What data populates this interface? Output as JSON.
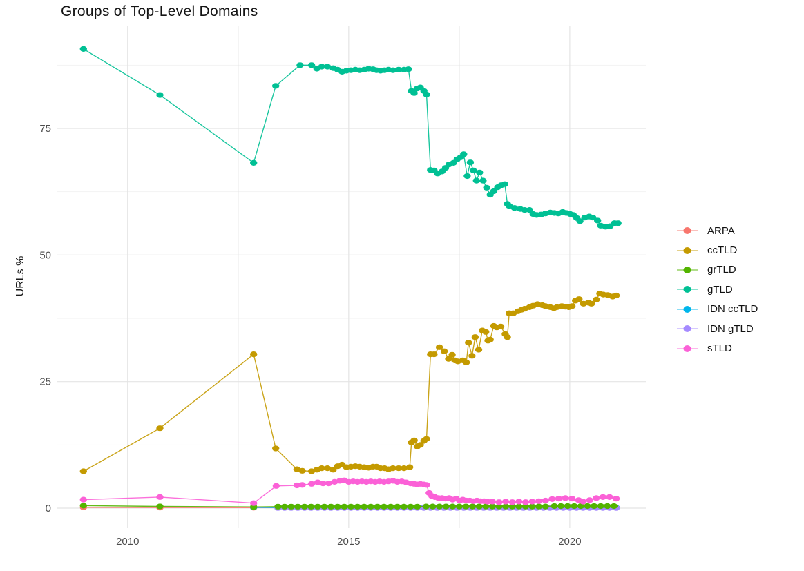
{
  "title": "Groups of Top-Level Domains",
  "axes": {
    "y_label": "URLs %",
    "x_tick_labels": [
      "2010",
      "2015",
      "2020"
    ],
    "y_tick_labels": [
      "0",
      "25",
      "50",
      "75"
    ]
  },
  "chart_data": {
    "type": "line",
    "title": "Groups of Top-Level Domains",
    "xlabel": "",
    "ylabel": "URLs %",
    "xlim": [
      2008.41,
      2021.72
    ],
    "ylim": [
      -3.95,
      95.32
    ],
    "x_ticks": [
      2010,
      2015,
      2020
    ],
    "y_ticks": [
      0,
      25,
      50,
      75
    ],
    "x_gridlines": [
      2010,
      2012.5,
      2015,
      2017.5,
      2020
    ],
    "y_minor_gridlines": [
      12.5,
      37.5,
      62.5,
      87.5
    ],
    "grid": true,
    "background": "#ffffff",
    "major_grid_color": "#e4e4e4",
    "minor_grid_color": "#f2f2f2",
    "tick_label_color": "#4d4d4d",
    "legend_position": "right",
    "legend": [
      {
        "label": "ARPA",
        "color": "#F8766D"
      },
      {
        "label": "ccTLD",
        "color": "#C49A00"
      },
      {
        "label": "grTLD",
        "color": "#53B400"
      },
      {
        "label": "gTLD",
        "color": "#00C094"
      },
      {
        "label": "IDN ccTLD",
        "color": "#00B6EB"
      },
      {
        "label": "IDN gTLD",
        "color": "#A58AFF"
      },
      {
        "label": "sTLD",
        "color": "#FB61D7"
      }
    ],
    "series": [
      {
        "name": "ARPA",
        "color": "#F8766D",
        "points": [
          [
            2009.0,
            0.15
          ],
          [
            2010.73,
            0.12
          ],
          [
            2012.85,
            0.1
          ]
        ],
        "segments": [
          {
            "from": 2013.4,
            "to": 2021.05,
            "step": 0.15,
            "value": 0.1
          }
        ]
      },
      {
        "name": "IDN ccTLD",
        "color": "#00B6EB",
        "points": [
          [
            2012.85,
            0.15
          ]
        ],
        "segments": [
          {
            "from": 2013.4,
            "to": 2021.05,
            "step": 0.15,
            "value": 0.12
          }
        ]
      },
      {
        "name": "IDN gTLD",
        "color": "#A58AFF",
        "points": [],
        "segments": [
          {
            "from": 2013.4,
            "to": 2021.05,
            "step": 0.15,
            "value": 0.05
          }
        ]
      },
      {
        "name": "grTLD",
        "color": "#53B400",
        "points": [
          [
            2009.0,
            0.5
          ],
          [
            2010.73,
            0.35
          ],
          [
            2012.85,
            0.25
          ]
        ],
        "segments": [
          {
            "from": 2013.4,
            "to": 2016.6,
            "step": 0.15,
            "value": 0.3
          },
          {
            "from": 2016.75,
            "to": 2019.5,
            "step": 0.15,
            "value": 0.33
          },
          {
            "from": 2019.65,
            "to": 2021.05,
            "step": 0.15,
            "value": 0.42
          }
        ]
      },
      {
        "name": "ccTLD",
        "color": "#C49A00",
        "points": [
          [
            2009.0,
            7.3
          ],
          [
            2010.73,
            15.8
          ],
          [
            2012.85,
            30.4
          ],
          [
            2013.35,
            11.8
          ],
          [
            2013.83,
            7.7
          ],
          [
            2013.95,
            7.4
          ],
          [
            2014.16,
            7.3
          ],
          [
            2014.28,
            7.6
          ],
          [
            2014.39,
            7.9
          ],
          [
            2014.52,
            7.9
          ],
          [
            2014.65,
            7.6
          ],
          [
            2014.75,
            8.3
          ],
          [
            2014.85,
            8.6
          ],
          [
            2014.95,
            8.1
          ],
          [
            2015.05,
            8.2
          ],
          [
            2015.15,
            8.3
          ],
          [
            2015.25,
            8.2
          ],
          [
            2015.35,
            8.1
          ],
          [
            2015.45,
            8.0
          ],
          [
            2015.55,
            8.2
          ],
          [
            2015.63,
            8.2
          ],
          [
            2015.72,
            7.9
          ],
          [
            2015.81,
            7.9
          ],
          [
            2015.9,
            7.7
          ],
          [
            2016.0,
            7.9
          ],
          [
            2016.13,
            7.9
          ],
          [
            2016.25,
            7.9
          ],
          [
            2016.38,
            8.1
          ],
          [
            2016.42,
            13.0
          ],
          [
            2016.48,
            13.4
          ],
          [
            2016.55,
            12.2
          ],
          [
            2016.62,
            12.5
          ],
          [
            2016.7,
            13.3
          ],
          [
            2016.76,
            13.7
          ],
          [
            2016.85,
            30.4
          ],
          [
            2016.93,
            30.4
          ],
          [
            2017.05,
            31.8
          ],
          [
            2017.16,
            31.0
          ],
          [
            2017.26,
            29.5
          ],
          [
            2017.34,
            30.3
          ],
          [
            2017.4,
            29.2
          ],
          [
            2017.47,
            29.0
          ],
          [
            2017.58,
            29.2
          ],
          [
            2017.66,
            28.8
          ],
          [
            2017.71,
            32.7
          ],
          [
            2017.79,
            30.1
          ],
          [
            2017.86,
            33.8
          ],
          [
            2017.94,
            31.3
          ],
          [
            2018.02,
            35.1
          ],
          [
            2018.1,
            34.8
          ],
          [
            2018.15,
            33.1
          ],
          [
            2018.2,
            33.3
          ],
          [
            2018.28,
            36.0
          ],
          [
            2018.35,
            35.7
          ],
          [
            2018.44,
            35.9
          ],
          [
            2018.54,
            34.4
          ],
          [
            2018.59,
            33.8
          ],
          [
            2018.63,
            38.5
          ],
          [
            2018.72,
            38.5
          ],
          [
            2018.83,
            38.9
          ],
          [
            2018.91,
            39.2
          ],
          [
            2018.98,
            39.4
          ],
          [
            2019.09,
            39.7
          ],
          [
            2019.17,
            40.0
          ],
          [
            2019.27,
            40.3
          ],
          [
            2019.38,
            40.1
          ],
          [
            2019.45,
            39.9
          ],
          [
            2019.56,
            39.7
          ],
          [
            2019.64,
            39.5
          ],
          [
            2019.71,
            39.7
          ],
          [
            2019.82,
            39.9
          ],
          [
            2019.9,
            39.8
          ],
          [
            2019.98,
            39.7
          ],
          [
            2020.05,
            39.9
          ],
          [
            2020.13,
            41.0
          ],
          [
            2020.21,
            41.3
          ],
          [
            2020.31,
            40.4
          ],
          [
            2020.42,
            40.6
          ],
          [
            2020.49,
            40.4
          ],
          [
            2020.6,
            41.2
          ],
          [
            2020.68,
            42.4
          ],
          [
            2020.76,
            42.2
          ],
          [
            2020.86,
            42.1
          ],
          [
            2020.97,
            41.8
          ],
          [
            2021.05,
            42.0
          ]
        ],
        "segments": []
      },
      {
        "name": "gTLD",
        "color": "#00C094",
        "points": [
          [
            2009.0,
            90.7
          ],
          [
            2010.73,
            81.6
          ],
          [
            2012.85,
            68.2
          ],
          [
            2013.35,
            83.4
          ],
          [
            2013.9,
            87.5
          ],
          [
            2014.16,
            87.5
          ],
          [
            2014.28,
            86.8
          ],
          [
            2014.39,
            87.2
          ],
          [
            2014.52,
            87.2
          ],
          [
            2014.65,
            86.9
          ],
          [
            2014.75,
            86.6
          ],
          [
            2014.85,
            86.2
          ],
          [
            2014.95,
            86.4
          ],
          [
            2015.05,
            86.5
          ],
          [
            2015.15,
            86.6
          ],
          [
            2015.25,
            86.5
          ],
          [
            2015.35,
            86.6
          ],
          [
            2015.45,
            86.8
          ],
          [
            2015.55,
            86.7
          ],
          [
            2015.63,
            86.5
          ],
          [
            2015.72,
            86.4
          ],
          [
            2015.81,
            86.5
          ],
          [
            2015.9,
            86.6
          ],
          [
            2016.0,
            86.5
          ],
          [
            2016.13,
            86.6
          ],
          [
            2016.25,
            86.6
          ],
          [
            2016.35,
            86.7
          ],
          [
            2016.42,
            82.4
          ],
          [
            2016.48,
            82.0
          ],
          [
            2016.55,
            82.9
          ],
          [
            2016.62,
            83.1
          ],
          [
            2016.7,
            82.4
          ],
          [
            2016.76,
            81.7
          ],
          [
            2016.85,
            66.8
          ],
          [
            2016.93,
            66.7
          ],
          [
            2017.01,
            66.1
          ],
          [
            2017.11,
            66.5
          ],
          [
            2017.19,
            67.2
          ],
          [
            2017.27,
            67.9
          ],
          [
            2017.37,
            68.2
          ],
          [
            2017.45,
            68.9
          ],
          [
            2017.53,
            69.3
          ],
          [
            2017.6,
            69.9
          ],
          [
            2017.68,
            65.6
          ],
          [
            2017.75,
            68.3
          ],
          [
            2017.82,
            66.7
          ],
          [
            2017.89,
            64.7
          ],
          [
            2017.96,
            66.3
          ],
          [
            2018.04,
            64.7
          ],
          [
            2018.12,
            63.3
          ],
          [
            2018.2,
            61.9
          ],
          [
            2018.28,
            62.6
          ],
          [
            2018.37,
            63.4
          ],
          [
            2018.45,
            63.8
          ],
          [
            2018.53,
            64.0
          ],
          [
            2018.59,
            60.1
          ],
          [
            2018.63,
            59.7
          ],
          [
            2018.75,
            59.3
          ],
          [
            2018.88,
            59.1
          ],
          [
            2018.98,
            58.9
          ],
          [
            2019.09,
            58.9
          ],
          [
            2019.17,
            58.1
          ],
          [
            2019.25,
            57.9
          ],
          [
            2019.35,
            58.0
          ],
          [
            2019.45,
            58.2
          ],
          [
            2019.56,
            58.4
          ],
          [
            2019.65,
            58.3
          ],
          [
            2019.74,
            58.2
          ],
          [
            2019.84,
            58.5
          ],
          [
            2019.92,
            58.3
          ],
          [
            2020.01,
            58.1
          ],
          [
            2020.08,
            57.9
          ],
          [
            2020.16,
            57.3
          ],
          [
            2020.23,
            56.7
          ],
          [
            2020.34,
            57.4
          ],
          [
            2020.44,
            57.6
          ],
          [
            2020.52,
            57.4
          ],
          [
            2020.63,
            56.8
          ],
          [
            2020.7,
            55.8
          ],
          [
            2020.81,
            55.6
          ],
          [
            2020.91,
            55.7
          ],
          [
            2021.01,
            56.3
          ],
          [
            2021.09,
            56.3
          ]
        ],
        "segments": []
      },
      {
        "name": "sTLD",
        "color": "#FB61D7",
        "points": [
          [
            2009.0,
            1.7
          ],
          [
            2010.73,
            2.2
          ],
          [
            2012.85,
            1.0
          ],
          [
            2013.36,
            4.4
          ],
          [
            2013.83,
            4.5
          ],
          [
            2013.95,
            4.6
          ],
          [
            2014.16,
            4.8
          ],
          [
            2014.3,
            5.1
          ],
          [
            2014.42,
            4.9
          ],
          [
            2014.55,
            4.9
          ],
          [
            2014.68,
            5.2
          ],
          [
            2014.8,
            5.4
          ],
          [
            2014.9,
            5.5
          ],
          [
            2015.0,
            5.2
          ],
          [
            2015.1,
            5.3
          ],
          [
            2015.2,
            5.2
          ],
          [
            2015.3,
            5.3
          ],
          [
            2015.4,
            5.2
          ],
          [
            2015.5,
            5.3
          ],
          [
            2015.6,
            5.2
          ],
          [
            2015.7,
            5.3
          ],
          [
            2015.8,
            5.2
          ],
          [
            2015.9,
            5.3
          ],
          [
            2016.0,
            5.4
          ],
          [
            2016.1,
            5.2
          ],
          [
            2016.2,
            5.3
          ],
          [
            2016.3,
            5.1
          ],
          [
            2016.4,
            4.9
          ],
          [
            2016.48,
            4.8
          ],
          [
            2016.55,
            4.7
          ],
          [
            2016.62,
            4.8
          ],
          [
            2016.7,
            4.7
          ],
          [
            2016.76,
            4.6
          ],
          [
            2016.82,
            3.0
          ],
          [
            2016.88,
            2.4
          ],
          [
            2016.95,
            2.2
          ],
          [
            2017.03,
            2.0
          ],
          [
            2017.11,
            2.0
          ],
          [
            2017.19,
            1.9
          ],
          [
            2017.27,
            2.0
          ],
          [
            2017.35,
            1.7
          ],
          [
            2017.43,
            1.9
          ],
          [
            2017.51,
            1.5
          ],
          [
            2017.58,
            1.7
          ],
          [
            2017.66,
            1.5
          ],
          [
            2017.74,
            1.5
          ],
          [
            2017.82,
            1.4
          ],
          [
            2017.9,
            1.5
          ],
          [
            2017.98,
            1.4
          ],
          [
            2018.06,
            1.4
          ],
          [
            2018.14,
            1.3
          ],
          [
            2018.25,
            1.3
          ],
          [
            2018.4,
            1.2
          ],
          [
            2018.55,
            1.3
          ],
          [
            2018.7,
            1.2
          ],
          [
            2018.85,
            1.3
          ],
          [
            2019.0,
            1.2
          ],
          [
            2019.15,
            1.3
          ],
          [
            2019.3,
            1.4
          ],
          [
            2019.45,
            1.5
          ],
          [
            2019.6,
            1.8
          ],
          [
            2019.75,
            1.9
          ],
          [
            2019.9,
            2.0
          ],
          [
            2020.05,
            1.9
          ],
          [
            2020.2,
            1.6
          ],
          [
            2020.3,
            1.3
          ],
          [
            2020.45,
            1.6
          ],
          [
            2020.6,
            2.0
          ],
          [
            2020.75,
            2.2
          ],
          [
            2020.9,
            2.2
          ],
          [
            2021.05,
            1.9
          ]
        ],
        "segments": []
      }
    ]
  }
}
